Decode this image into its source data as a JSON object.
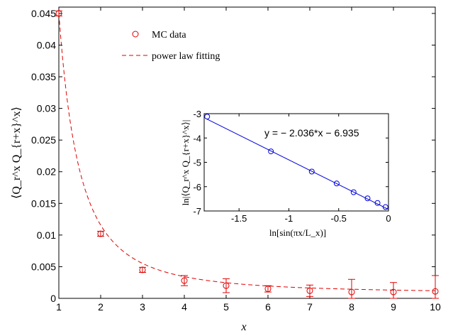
{
  "chart_data": [
    {
      "type": "scatter",
      "xlabel": "x",
      "ylabel": "⟨Q_r^x Q_{r+x}^x⟩",
      "xlim": [
        1,
        10
      ],
      "ylim": [
        0,
        0.046
      ],
      "x_ticks": [
        "1",
        "2",
        "3",
        "4",
        "5",
        "6",
        "7",
        "8",
        "9",
        "10"
      ],
      "y_ticks": [
        "0",
        "0.005",
        "0.01",
        "0.015",
        "0.02",
        "0.025",
        "0.03",
        "0.035",
        "0.04",
        "0.045"
      ],
      "legend": {
        "placement": "top-left",
        "entries": [
          {
            "label": "MC data",
            "marker": "circle",
            "color": "#e00000"
          },
          {
            "label": "power law fitting",
            "line": "dashed",
            "color": "#e00000"
          }
        ]
      },
      "series": [
        {
          "name": "MC data",
          "x": [
            1,
            2,
            3,
            4,
            5,
            6,
            7,
            8,
            9,
            10
          ],
          "y": [
            0.045,
            0.0102,
            0.0045,
            0.0028,
            0.002,
            0.0015,
            0.0012,
            0.001,
            0.001,
            0.0011
          ],
          "error": [
            0.0004,
            0.0004,
            0.0004,
            0.0008,
            0.0011,
            0.0005,
            0.0009,
            0.002,
            0.0015,
            0.0025
          ]
        }
      ],
      "fit": {
        "name": "power law fitting",
        "amplitude": 0.045,
        "exponent": -2.036,
        "floor": 0.0008
      }
    },
    {
      "type": "scatter",
      "xlabel": "ln[sin(πx/L_x)]",
      "ylabel": "ln|⟨Q_r^x Q_{r+x}^x⟩|",
      "xlim": [
        -1.85,
        0
      ],
      "ylim": [
        -7,
        -3
      ],
      "x_ticks": [
        "-1.5",
        "-1",
        "-0.5",
        "0"
      ],
      "x_tick_values": [
        -1.5,
        -1,
        -0.5,
        0
      ],
      "y_ticks": [
        "-7",
        "-6",
        "-5",
        "-4",
        "-3"
      ],
      "y_tick_values": [
        -7,
        -6,
        -5,
        -4,
        -3
      ],
      "series": [
        {
          "name": "",
          "x": [
            -1.82,
            -1.18,
            -0.77,
            -0.52,
            -0.35,
            -0.21,
            -0.11,
            -0.03
          ],
          "y": [
            -3.12,
            -4.55,
            -5.38,
            -5.87,
            -6.23,
            -6.48,
            -6.67,
            -6.84
          ]
        }
      ],
      "fit": {
        "slope": -2.036,
        "intercept": -6.935,
        "color": "#0000dd"
      },
      "annotation": "y = − 2.036*x − 6.935"
    }
  ]
}
